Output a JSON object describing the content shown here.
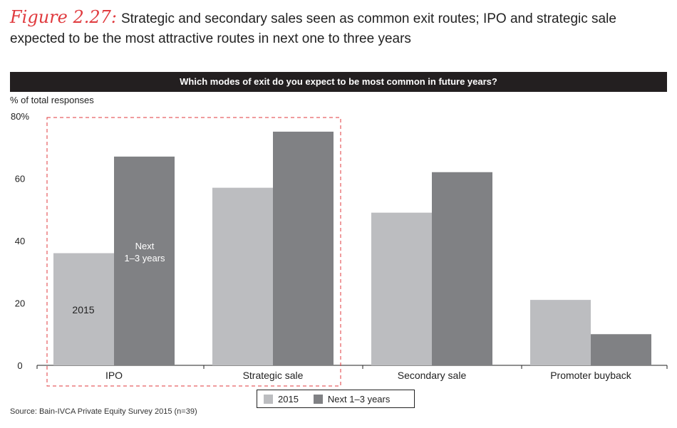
{
  "figure": {
    "label": "Figure 2.27:",
    "text": "Strategic and secondary sales seen as common exit routes; IPO and strategic sale expected to be the most attractive routes in next one to three years"
  },
  "chart_header": "Which modes of exit do you expect to be most common in future years?",
  "colors": {
    "series_2015": "#bcbdc0",
    "series_next": "#808184",
    "highlight_box": "#e03a3e",
    "header_bg": "#231f20"
  },
  "chart_data": {
    "type": "bar",
    "title": "Which modes of exit do you expect to be most common in future years?",
    "ylabel": "% of total responses",
    "xlabel": "",
    "ylim": [
      0,
      80
    ],
    "y_ticks": [
      "80%",
      "60",
      "40",
      "20",
      "0"
    ],
    "y_tick_values": [
      80,
      60,
      40,
      20,
      0
    ],
    "categories": [
      "IPO",
      "Strategic sale",
      "Secondary sale",
      "Promoter buyback"
    ],
    "series": [
      {
        "name": "2015",
        "values": [
          36,
          57,
          49,
          21
        ]
      },
      {
        "name": "Next 1–3 years",
        "values": [
          67,
          75,
          62,
          10
        ]
      }
    ],
    "annotations": [
      "2015",
      "Next",
      "1–3 years"
    ],
    "highlighted_categories": [
      "IPO",
      "Strategic sale"
    ]
  },
  "legend": [
    {
      "label": "2015",
      "color": "#bcbdc0"
    },
    {
      "label": "Next 1–3 years",
      "color": "#808184"
    }
  ],
  "source": "Source: Bain-IVCA Private Equity Survey 2015 (n=39)"
}
